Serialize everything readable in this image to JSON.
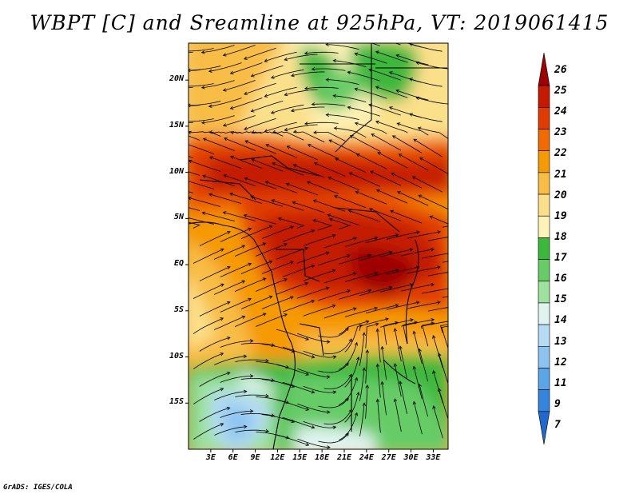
{
  "title": "WBPT [C] and Sreamline at 925hPa, VT: 2019061415",
  "credit": "GrADS: IGES/COLA",
  "lat_labels": [
    "20N",
    "15N",
    "10N",
    "5N",
    "EQ",
    "5S",
    "10S",
    "15S"
  ],
  "lon_labels": [
    "3E",
    "6E",
    "9E",
    "12E",
    "15E",
    "18E",
    "21E",
    "24E",
    "27E",
    "30E",
    "33E"
  ],
  "colorbar": {
    "labels": [
      "26",
      "25",
      "24",
      "23",
      "22",
      "21",
      "20",
      "19",
      "18",
      "17",
      "16",
      "15",
      "14",
      "13",
      "12",
      "11",
      "9",
      "7"
    ],
    "colors": [
      "#9e0000",
      "#c41a00",
      "#e03c00",
      "#f06a00",
      "#f59a00",
      "#f8bd44",
      "#fbe08a",
      "#fff3b8",
      "#3cb83c",
      "#66cc66",
      "#9de29d",
      "#dff4ef",
      "#b6dcf5",
      "#8cc4ef",
      "#5aa4e8",
      "#3584dd",
      "#1e68cf"
    ]
  },
  "map": {
    "lat_range": [
      -20,
      24
    ],
    "lon_range": [
      0,
      35
    ]
  }
}
